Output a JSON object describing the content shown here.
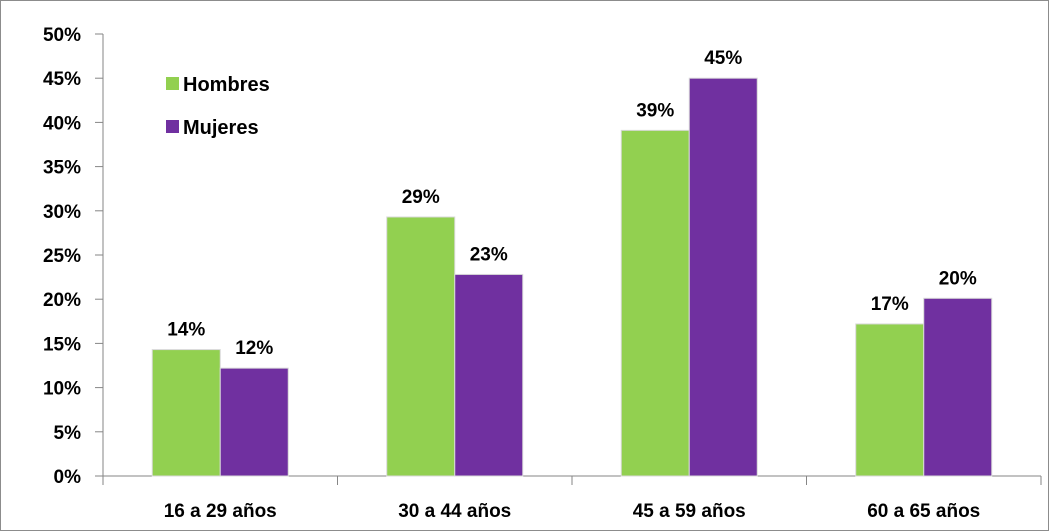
{
  "chart_data": {
    "type": "bar",
    "categories": [
      "16 a 29 años",
      "30 a 44 años",
      "45 a 59 años",
      "60 a 65 años"
    ],
    "series": [
      {
        "name": "Hombres",
        "values": [
          14.3,
          29.3,
          39.1,
          17.2
        ],
        "labels": [
          "14%",
          "29%",
          "39%",
          "17%"
        ]
      },
      {
        "name": "Mujeres",
        "values": [
          12.2,
          22.8,
          45.0,
          20.1
        ],
        "labels": [
          "12%",
          "23%",
          "45%",
          "20%"
        ]
      }
    ],
    "ylim": [
      0,
      50
    ],
    "yticks": [
      0,
      5,
      10,
      15,
      20,
      25,
      30,
      35,
      40,
      45,
      50
    ],
    "ytick_labels": [
      "0%",
      "5%",
      "10%",
      "15%",
      "20%",
      "25%",
      "30%",
      "35%",
      "40%",
      "45%",
      "50%"
    ],
    "legend_position": "top-left",
    "grid": false,
    "colors": {
      "Hombres": "#92d050",
      "Mujeres": "#7030a0",
      "axis": "#868686"
    }
  }
}
